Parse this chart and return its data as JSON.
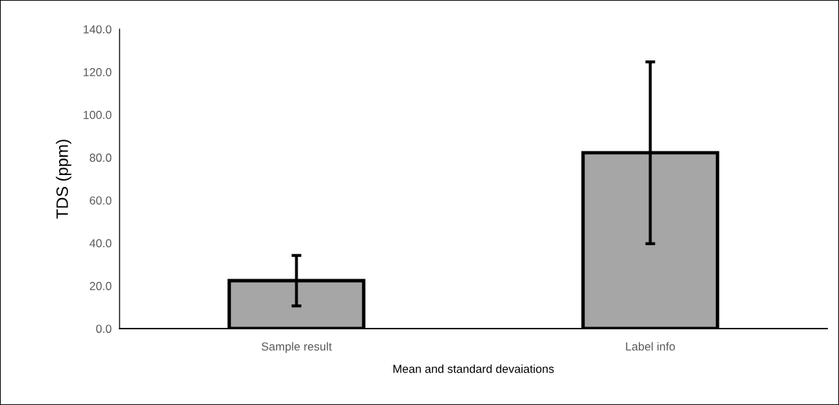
{
  "chart_data": {
    "type": "bar",
    "xlabel": "Mean and standard devaiations",
    "ylabel": "TDS (ppm)",
    "categories": [
      "Sample result",
      "Label info"
    ],
    "values": [
      22.4,
      82.2
    ],
    "errors": [
      11.8,
      42.5
    ],
    "color": "#a6a6a6",
    "ylim": [
      0,
      140
    ],
    "yticks": [
      {
        "value": 0,
        "label": "0.0"
      },
      {
        "value": 20,
        "label": "20.0"
      },
      {
        "value": 40,
        "label": "40.0"
      },
      {
        "value": 60,
        "label": "60.0"
      },
      {
        "value": 80,
        "label": "80.0"
      },
      {
        "value": 100,
        "label": "100.0"
      },
      {
        "value": 120,
        "label": "120.0"
      },
      {
        "value": 140,
        "label": "140.0"
      }
    ],
    "grid": false,
    "legend": false
  }
}
